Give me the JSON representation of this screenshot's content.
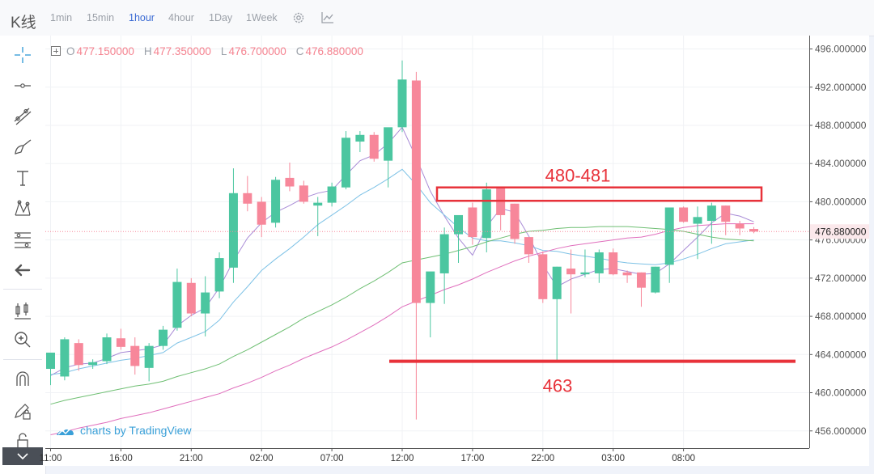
{
  "header": {
    "title": "K线",
    "timeframes": [
      "1min",
      "15min",
      "1hour",
      "4hour",
      "1Day",
      "1Week"
    ],
    "active_timeframe": "1hour",
    "settings_icon": "gear-icon",
    "indicator_icon": "chart-line-icon"
  },
  "toolbar": {
    "tools": [
      "crosshair-icon",
      "horizontal-line-icon",
      "trend-lines-icon",
      "brush-icon",
      "text-icon",
      "pattern-icon",
      "fib-tools-icon",
      "back-arrow-icon",
      "candles-icon",
      "zoom-in-icon",
      "magnet-icon",
      "pencil-lock-icon",
      "lock-icon"
    ]
  },
  "legend": {
    "o_label": "O",
    "o_value": "477.150000",
    "h_label": "H",
    "h_value": "477.350000",
    "l_label": "L",
    "l_value": "476.700000",
    "c_label": "C",
    "c_value": "476.880000"
  },
  "watermark": "charts by TradingView",
  "colors": {
    "up": "#4bc6a0",
    "down": "#f7879a",
    "annotation": "#e8323a",
    "ma_fast": "#a88bd6",
    "ma_mid": "#7ec2e6",
    "ma_slow": "#6fbf73",
    "ma_slowest": "#e06fbd"
  },
  "chart_data": {
    "type": "candlestick",
    "y_ticks": [
      "456.000000",
      "460.000000",
      "464.000000",
      "468.000000",
      "472.000000",
      "476.000000",
      "480.000000",
      "484.000000",
      "488.000000",
      "492.000000",
      "496.000000"
    ],
    "y_tick_values": [
      456,
      460,
      464,
      468,
      472,
      476,
      480,
      484,
      488,
      492,
      496
    ],
    "ylim": [
      454.2,
      497.4
    ],
    "x_ticks": [
      "11:00",
      "16:00",
      "21:00",
      "02:00",
      "07:00",
      "12:00",
      "17:00",
      "22:00",
      "03:00",
      "08:00"
    ],
    "x_tick_index": [
      0,
      5,
      10,
      15,
      20,
      25,
      30,
      35,
      40,
      45
    ],
    "last_price": "476.880000",
    "last_price_value": 476.88,
    "candles": [
      {
        "o": 462.5,
        "h": 464.0,
        "l": 460.8,
        "c": 464.2
      },
      {
        "o": 461.7,
        "h": 465.8,
        "l": 461.3,
        "c": 465.6
      },
      {
        "o": 465.2,
        "h": 465.6,
        "l": 462.3,
        "c": 462.9
      },
      {
        "o": 462.9,
        "h": 463.5,
        "l": 462.5,
        "c": 463.2
      },
      {
        "o": 463.3,
        "h": 466.2,
        "l": 463.0,
        "c": 465.8
      },
      {
        "o": 465.7,
        "h": 466.7,
        "l": 464.5,
        "c": 464.8
      },
      {
        "o": 464.9,
        "h": 465.8,
        "l": 461.9,
        "c": 462.8
      },
      {
        "o": 462.6,
        "h": 465.2,
        "l": 461.2,
        "c": 464.9
      },
      {
        "o": 464.9,
        "h": 467.0,
        "l": 464.5,
        "c": 466.6
      },
      {
        "o": 466.8,
        "h": 473.0,
        "l": 466.5,
        "c": 471.6
      },
      {
        "o": 471.5,
        "h": 472.0,
        "l": 468.0,
        "c": 468.3
      },
      {
        "o": 468.3,
        "h": 472.2,
        "l": 465.9,
        "c": 470.5
      },
      {
        "o": 470.6,
        "h": 474.7,
        "l": 469.9,
        "c": 474.1
      },
      {
        "o": 473.1,
        "h": 483.5,
        "l": 471.5,
        "c": 480.9
      },
      {
        "o": 480.9,
        "h": 482.7,
        "l": 479.0,
        "c": 479.8
      },
      {
        "o": 480.0,
        "h": 480.5,
        "l": 476.3,
        "c": 477.6
      },
      {
        "o": 477.8,
        "h": 482.6,
        "l": 477.3,
        "c": 482.3
      },
      {
        "o": 482.5,
        "h": 484.1,
        "l": 481.1,
        "c": 481.6
      },
      {
        "o": 481.7,
        "h": 482.2,
        "l": 479.8,
        "c": 480.0
      },
      {
        "o": 479.6,
        "h": 480.5,
        "l": 476.4,
        "c": 479.9
      },
      {
        "o": 479.9,
        "h": 482.0,
        "l": 479.5,
        "c": 481.6
      },
      {
        "o": 481.5,
        "h": 487.4,
        "l": 481.3,
        "c": 486.7
      },
      {
        "o": 486.3,
        "h": 487.4,
        "l": 485.2,
        "c": 487.0
      },
      {
        "o": 487.0,
        "h": 487.3,
        "l": 484.2,
        "c": 484.5
      },
      {
        "o": 484.3,
        "h": 487.5,
        "l": 481.5,
        "c": 487.8
      },
      {
        "o": 487.8,
        "h": 494.8,
        "l": 487.3,
        "c": 492.8
      },
      {
        "o": 492.7,
        "h": 493.6,
        "l": 457.2,
        "c": 469.4
      },
      {
        "o": 469.4,
        "h": 472.5,
        "l": 465.8,
        "c": 472.7
      },
      {
        "o": 472.5,
        "h": 477.3,
        "l": 469.3,
        "c": 476.6
      },
      {
        "o": 476.6,
        "h": 478.4,
        "l": 473.6,
        "c": 478.6
      },
      {
        "o": 479.4,
        "h": 479.9,
        "l": 475.5,
        "c": 476.3
      },
      {
        "o": 476.2,
        "h": 482.0,
        "l": 474.7,
        "c": 481.3
      },
      {
        "o": 481.5,
        "h": 481.5,
        "l": 477.0,
        "c": 478.6
      },
      {
        "o": 479.8,
        "h": 479.8,
        "l": 475.6,
        "c": 476.1
      },
      {
        "o": 476.3,
        "h": 476.3,
        "l": 473.6,
        "c": 474.5
      },
      {
        "o": 474.5,
        "h": 474.8,
        "l": 469.4,
        "c": 469.8
      },
      {
        "o": 469.8,
        "h": 473.2,
        "l": 463.4,
        "c": 473.2
      },
      {
        "o": 473.0,
        "h": 475.0,
        "l": 468.3,
        "c": 472.4
      },
      {
        "o": 472.4,
        "h": 475.0,
        "l": 472.1,
        "c": 472.6
      },
      {
        "o": 472.5,
        "h": 475.0,
        "l": 471.5,
        "c": 474.7
      },
      {
        "o": 474.7,
        "h": 475.1,
        "l": 472.3,
        "c": 472.4
      },
      {
        "o": 472.6,
        "h": 472.8,
        "l": 471.5,
        "c": 472.3
      },
      {
        "o": 472.6,
        "h": 472.6,
        "l": 469.0,
        "c": 471.0
      },
      {
        "o": 470.5,
        "h": 473.2,
        "l": 470.4,
        "c": 473.2
      },
      {
        "o": 473.4,
        "h": 479.2,
        "l": 471.5,
        "c": 479.4
      },
      {
        "o": 479.4,
        "h": 479.5,
        "l": 477.8,
        "c": 477.9
      },
      {
        "o": 477.7,
        "h": 479.5,
        "l": 474.0,
        "c": 478.4
      },
      {
        "o": 478.0,
        "h": 479.9,
        "l": 475.6,
        "c": 479.6
      },
      {
        "o": 479.6,
        "h": 479.6,
        "l": 476.5,
        "c": 477.9
      },
      {
        "o": 477.7,
        "h": 478.0,
        "l": 476.5,
        "c": 477.2
      },
      {
        "o": 477.15,
        "h": 477.35,
        "l": 476.7,
        "c": 476.88
      }
    ],
    "moving_averages": [
      {
        "values": [
          461.8,
          462.6,
          463.0,
          463.1,
          463.6,
          464.2,
          464.4,
          464.6,
          465.0,
          467.0,
          468.1,
          468.9,
          471.0,
          473.8,
          476.2,
          477.8,
          478.9,
          479.6,
          480.4,
          480.9,
          481.2,
          482.8,
          484.3,
          484.9,
          486.1,
          487.8,
          484.6,
          481.1,
          478.5,
          476.2,
          474.4,
          477.4,
          479.3,
          478.9,
          476.4,
          473.4,
          471.1,
          471.9,
          472.4,
          472.9,
          473.0,
          472.7,
          472.4,
          472.5,
          473.5,
          474.9,
          476.3,
          477.8,
          478.8,
          478.5,
          477.9
        ]
      },
      {
        "values": [
          461.9,
          462.1,
          462.5,
          462.8,
          463.1,
          463.4,
          463.6,
          463.9,
          464.2,
          465.2,
          465.8,
          466.4,
          467.6,
          469.5,
          471.1,
          472.8,
          474.0,
          475.1,
          476.3,
          477.6,
          478.6,
          479.6,
          480.7,
          481.5,
          482.4,
          483.4,
          481.8,
          479.9,
          478.6,
          477.3,
          476.2,
          475.9,
          475.9,
          475.7,
          475.4,
          474.9,
          474.8,
          474.5,
          474.3,
          474.1,
          473.8,
          473.6,
          473.5,
          473.4,
          473.6,
          474.0,
          474.5,
          475.1,
          475.6,
          475.8,
          476.0
        ]
      },
      {
        "values": [
          458.8,
          459.2,
          459.5,
          459.8,
          460.1,
          460.4,
          460.7,
          460.9,
          461.2,
          461.7,
          462.1,
          462.5,
          463.0,
          463.8,
          464.5,
          465.3,
          466.1,
          466.9,
          467.8,
          468.5,
          469.2,
          470.0,
          470.9,
          471.7,
          472.6,
          473.6,
          473.9,
          474.2,
          474.5,
          474.9,
          475.3,
          475.8,
          476.2,
          476.6,
          476.9,
          477.0,
          477.2,
          477.3,
          477.3,
          477.4,
          477.4,
          477.4,
          477.3,
          477.2,
          477.1,
          476.9,
          476.6,
          476.3,
          476.1,
          476.0,
          475.9
        ]
      },
      {
        "values": [
          455.6,
          455.9,
          456.3,
          456.6,
          456.9,
          457.3,
          457.6,
          457.9,
          458.3,
          458.7,
          459.1,
          459.5,
          459.9,
          460.5,
          461.0,
          461.6,
          462.3,
          462.9,
          463.6,
          464.2,
          464.8,
          465.5,
          466.3,
          467.1,
          468.0,
          469.0,
          469.6,
          470.2,
          470.8,
          471.3,
          471.9,
          472.6,
          473.2,
          473.8,
          474.3,
          474.7,
          475.1,
          475.4,
          475.6,
          475.8,
          476.0,
          476.2,
          476.3,
          476.6,
          477.0,
          477.3,
          477.5,
          477.6,
          477.7,
          477.7,
          477.7
        ]
      }
    ]
  },
  "annotations": {
    "resistance_label": "480-481",
    "resistance_low": 480.1,
    "resistance_high": 481.5,
    "support_label": "463",
    "support_value": 463.3
  }
}
